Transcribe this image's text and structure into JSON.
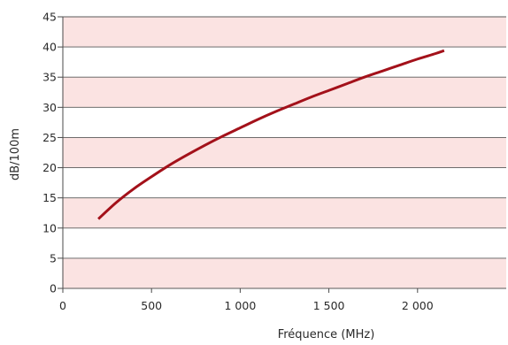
{
  "chart_data": {
    "type": "line",
    "title": "",
    "xlabel": "Fréquence (MHz)",
    "ylabel": "dB/100m",
    "xlim": [
      0,
      2500
    ],
    "ylim": [
      0,
      45
    ],
    "x_ticks": [
      0,
      500,
      1000,
      1500,
      2000
    ],
    "x_tick_labels": [
      "0",
      "500",
      "1 000",
      "1 500",
      "2 000"
    ],
    "y_ticks": [
      0,
      5,
      10,
      15,
      20,
      25,
      30,
      35,
      40,
      45
    ],
    "y_tick_labels": [
      "0",
      "5",
      "10",
      "15",
      "20",
      "25",
      "30",
      "35",
      "40",
      "45"
    ],
    "grid": "horizontal bands",
    "legend": "none",
    "series": [
      {
        "x": [
          200,
          300,
          400,
          500,
          600,
          700,
          800,
          900,
          1000,
          1100,
          1200,
          1300,
          1400,
          1500,
          1600,
          1700,
          1800,
          1900,
          2000,
          2100,
          2150
        ],
        "y": [
          11.5,
          14.2,
          16.5,
          18.5,
          20.4,
          22.1,
          23.7,
          25.2,
          26.6,
          28.0,
          29.3,
          30.5,
          31.7,
          32.8,
          33.9,
          35.0,
          36.0,
          37.0,
          38.0,
          38.9,
          39.4
        ]
      }
    ],
    "colors": {
      "line": "#a3111a",
      "band_shaded": "#fbe3e2",
      "band_plain": "#ffffff",
      "gridline": "#5a5a5a",
      "axis": "#4a4a4a"
    }
  }
}
